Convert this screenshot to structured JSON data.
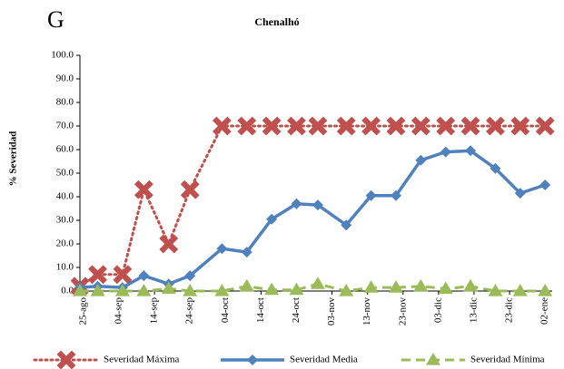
{
  "chart_data": {
    "type": "line",
    "panel_label": "G",
    "title": "Chenalhó",
    "y_label": "% Severidad",
    "x": [
      -1,
      4,
      11,
      17,
      24,
      30,
      39,
      46,
      53,
      60,
      66,
      74,
      81,
      88,
      95,
      102,
      109,
      116,
      123,
      130
    ],
    "xlim": [
      -1,
      132
    ],
    "xticks": [
      {
        "value": 0,
        "label": "25-ago"
      },
      {
        "value": 10,
        "label": "04-sep"
      },
      {
        "value": 20,
        "label": "14-sep"
      },
      {
        "value": 30,
        "label": "24-sep"
      },
      {
        "value": 40,
        "label": "04-oct"
      },
      {
        "value": 50,
        "label": "14-oct"
      },
      {
        "value": 60,
        "label": "24-oct"
      },
      {
        "value": 70,
        "label": "03-nov"
      },
      {
        "value": 80,
        "label": "13-nov"
      },
      {
        "value": 90,
        "label": "23-nov"
      },
      {
        "value": 100,
        "label": "03-dic"
      },
      {
        "value": 110,
        "label": "13-dic"
      },
      {
        "value": 120,
        "label": "23-dic"
      },
      {
        "value": 130,
        "label": "02-ene"
      }
    ],
    "ylim": [
      0,
      100
    ],
    "yticks": [
      {
        "value": 0,
        "label": "0.0"
      },
      {
        "value": 10,
        "label": "10.0"
      },
      {
        "value": 20,
        "label": "20.0"
      },
      {
        "value": 30,
        "label": "30.0"
      },
      {
        "value": 40,
        "label": "40.0"
      },
      {
        "value": 50,
        "label": "50.0"
      },
      {
        "value": 60,
        "label": "60.0"
      },
      {
        "value": 70,
        "label": "70.0"
      },
      {
        "value": 80,
        "label": "80.0"
      },
      {
        "value": 90,
        "label": "90.0"
      },
      {
        "value": 100,
        "label": "100.0"
      }
    ],
    "series": [
      {
        "name": "Severidad Máxima",
        "color": "#c0504d",
        "values": [
          2,
          7,
          7,
          43,
          20,
          43,
          70,
          70,
          70,
          70,
          70,
          70,
          70,
          70,
          70,
          70,
          70,
          70,
          70,
          70
        ]
      },
      {
        "name": "Severidad Media",
        "color": "#4f81bd",
        "values": [
          1.5,
          2,
          1.5,
          6.5,
          3,
          6.5,
          18,
          16.5,
          30.5,
          37,
          36.5,
          28,
          40.5,
          40.5,
          55.5,
          59,
          59.5,
          52,
          41.5,
          45
        ]
      },
      {
        "name": "Severidad Mínima",
        "color": "#9bbb59",
        "values": [
          0,
          0,
          0,
          0,
          1,
          0,
          0,
          2,
          0.5,
          0.5,
          3,
          0,
          1.5,
          1.5,
          2,
          1,
          2,
          0,
          0,
          0
        ]
      }
    ]
  }
}
